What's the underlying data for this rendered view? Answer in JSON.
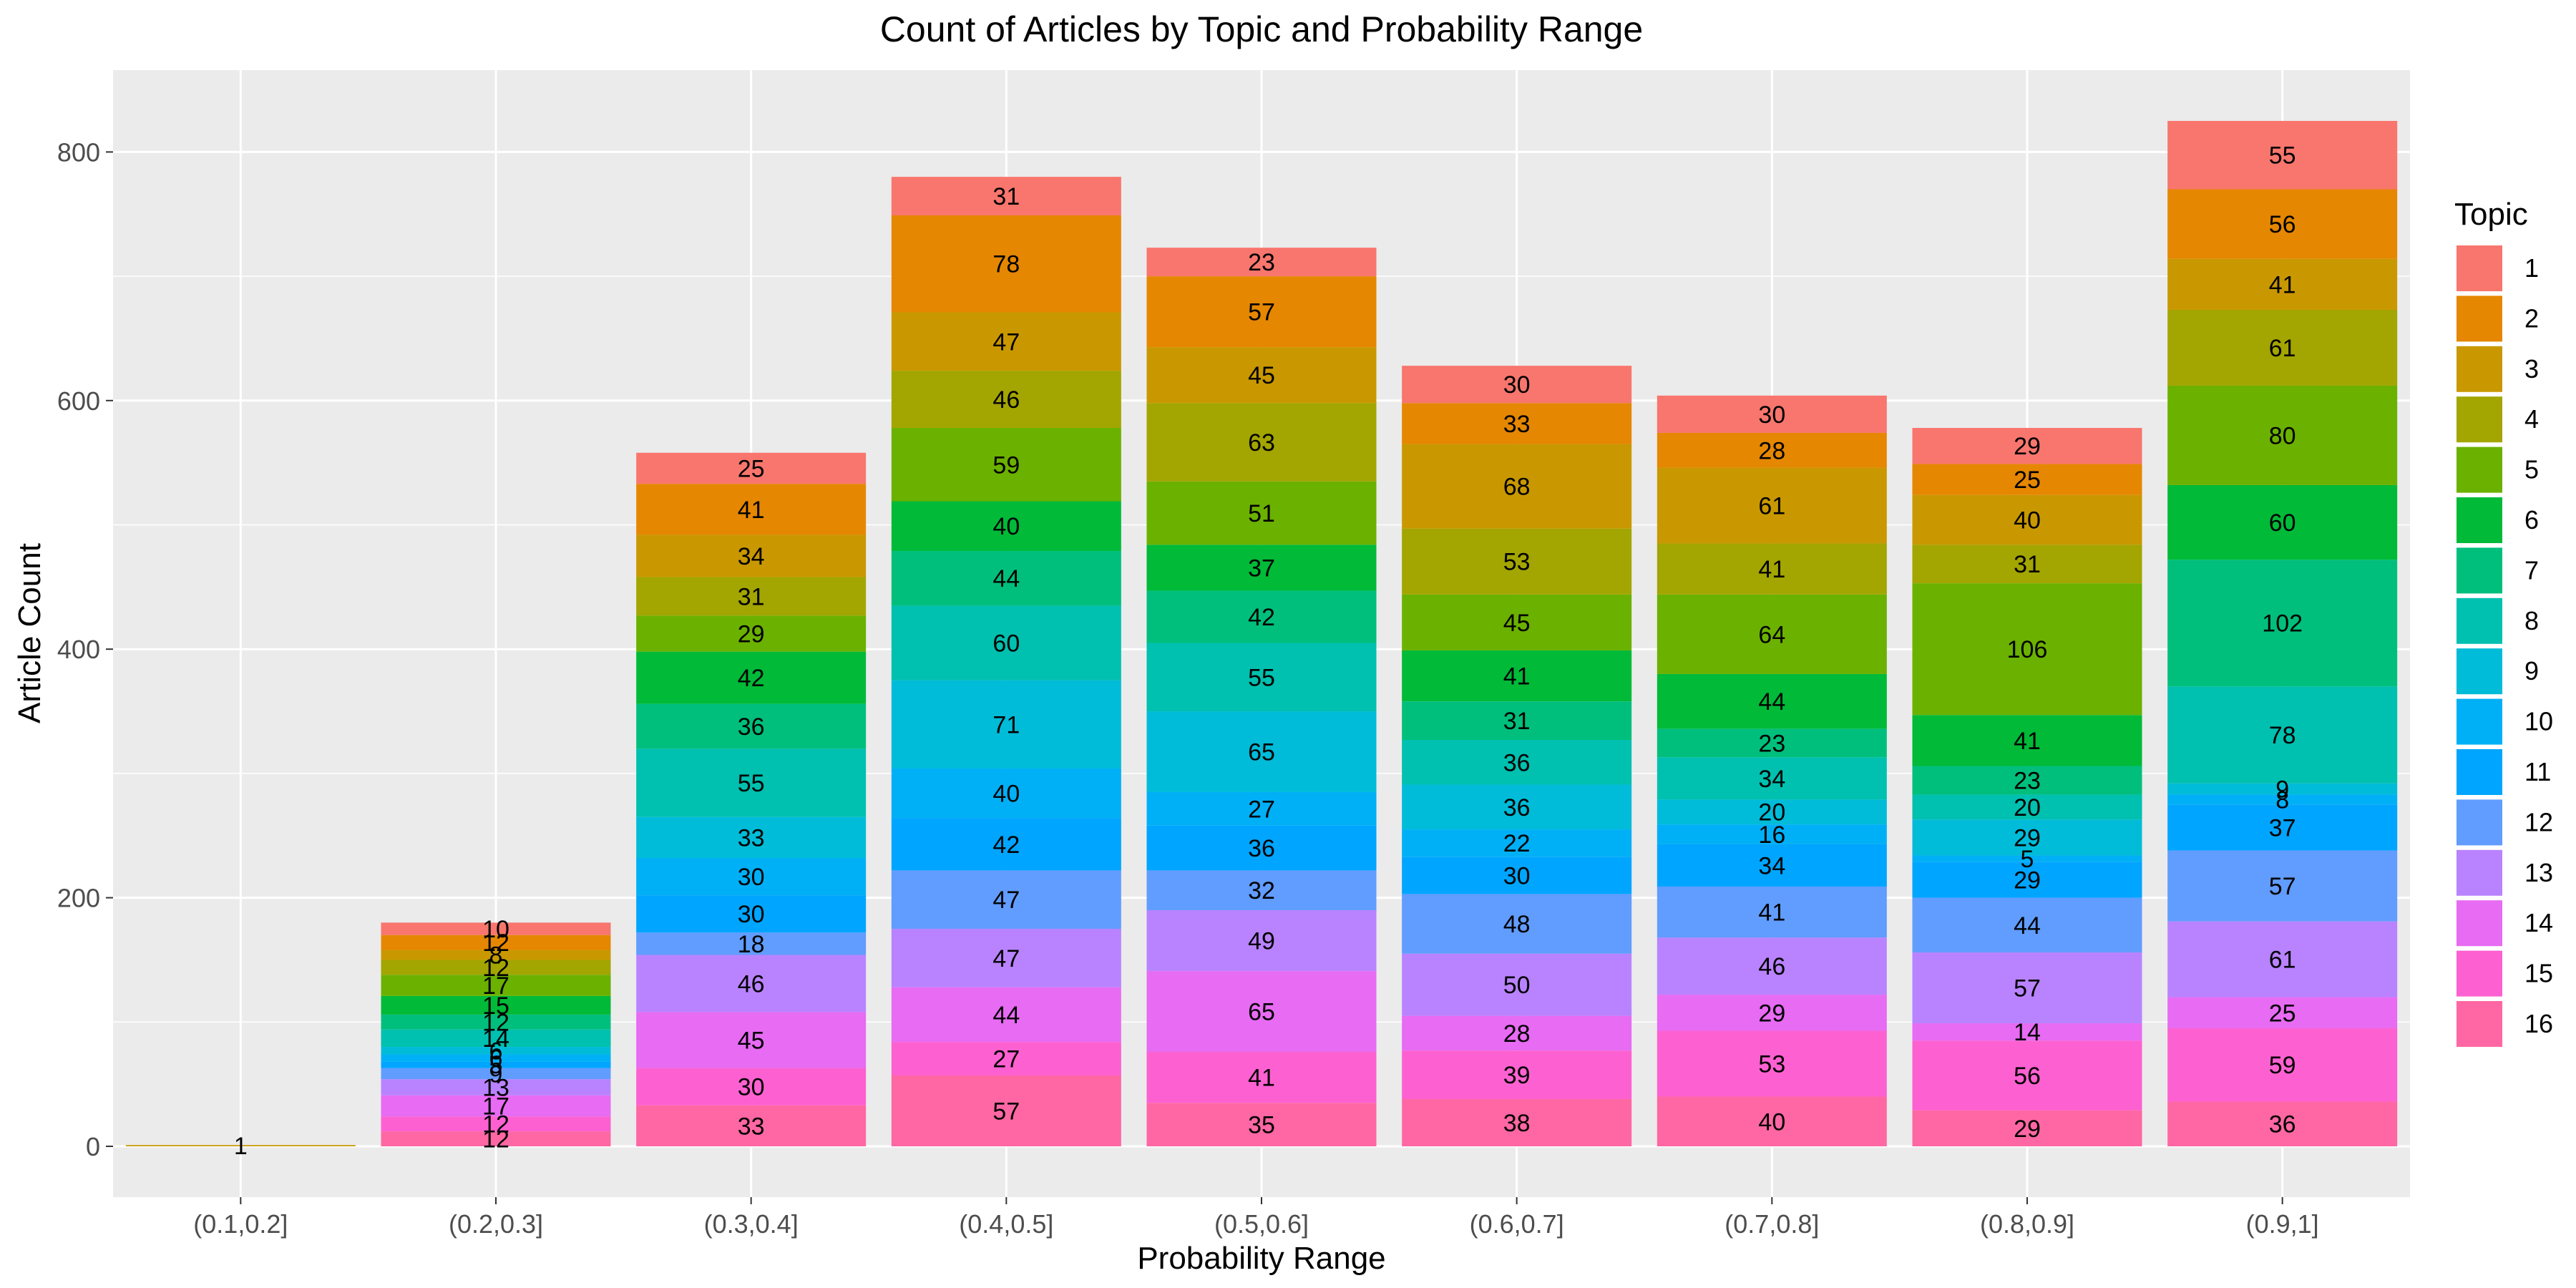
{
  "chart_data": {
    "type": "bar",
    "stacked": true,
    "title": "Count of Articles by Topic and Probability Range",
    "xlabel": "Probability Range",
    "ylabel": "Article Count",
    "ylim": [
      0,
      850
    ],
    "yticks": [
      0,
      200,
      400,
      600,
      800
    ],
    "grid": true,
    "legend_position": "right",
    "legend_title": "Topic",
    "categories": [
      "(0.1,0.2]",
      "(0.2,0.3]",
      "(0.3,0.4]",
      "(0.4,0.5]",
      "(0.5,0.6]",
      "(0.6,0.7]",
      "(0.7,0.8]",
      "(0.8,0.9]",
      "(0.9,1]"
    ],
    "series": [
      {
        "name": "1",
        "color": "#F8766D",
        "values": [
          0,
          10,
          25,
          31,
          23,
          30,
          30,
          29,
          55
        ]
      },
      {
        "name": "2",
        "color": "#E58700",
        "values": [
          0,
          12,
          41,
          78,
          57,
          33,
          28,
          25,
          56
        ]
      },
      {
        "name": "3",
        "color": "#C99800",
        "values": [
          1,
          8,
          34,
          47,
          45,
          68,
          61,
          40,
          41
        ]
      },
      {
        "name": "4",
        "color": "#A3A500",
        "values": [
          0,
          12,
          31,
          46,
          63,
          53,
          41,
          31,
          61
        ]
      },
      {
        "name": "5",
        "color": "#6BB100",
        "values": [
          0,
          17,
          29,
          59,
          51,
          45,
          64,
          106,
          80
        ]
      },
      {
        "name": "6",
        "color": "#00BA38",
        "values": [
          0,
          15,
          42,
          40,
          37,
          41,
          44,
          41,
          60
        ]
      },
      {
        "name": "7",
        "color": "#00BF7D",
        "values": [
          0,
          12,
          36,
          44,
          42,
          31,
          23,
          23,
          102
        ]
      },
      {
        "name": "8",
        "color": "#00C0AF",
        "values": [
          0,
          14,
          55,
          60,
          55,
          36,
          34,
          20,
          78
        ]
      },
      {
        "name": "9",
        "color": "#00BCD8",
        "values": [
          0,
          6,
          33,
          71,
          65,
          36,
          20,
          29,
          9
        ]
      },
      {
        "name": "10",
        "color": "#00B0F6",
        "values": [
          0,
          6,
          30,
          40,
          27,
          22,
          16,
          5,
          8
        ]
      },
      {
        "name": "11",
        "color": "#00A5FF",
        "values": [
          0,
          5,
          30,
          42,
          36,
          30,
          34,
          29,
          37
        ]
      },
      {
        "name": "12",
        "color": "#619CFF",
        "values": [
          0,
          9,
          18,
          47,
          32,
          48,
          41,
          44,
          57
        ]
      },
      {
        "name": "13",
        "color": "#B983FF",
        "values": [
          0,
          13,
          46,
          47,
          49,
          50,
          46,
          57,
          61
        ]
      },
      {
        "name": "14",
        "color": "#E76BF3",
        "values": [
          0,
          17,
          45,
          44,
          65,
          28,
          29,
          14,
          25
        ]
      },
      {
        "name": "15",
        "color": "#FD61D1",
        "values": [
          0,
          12,
          30,
          27,
          41,
          39,
          53,
          56,
          59
        ]
      },
      {
        "name": "16",
        "color": "#FF67A4",
        "values": [
          0,
          12,
          33,
          57,
          35,
          38,
          40,
          29,
          36
        ]
      }
    ]
  },
  "colors": {
    "panel_background": "#EBEBEB",
    "grid_line": "#FFFFFF",
    "text": "#000000",
    "axis_text": "#4D4D4D"
  }
}
